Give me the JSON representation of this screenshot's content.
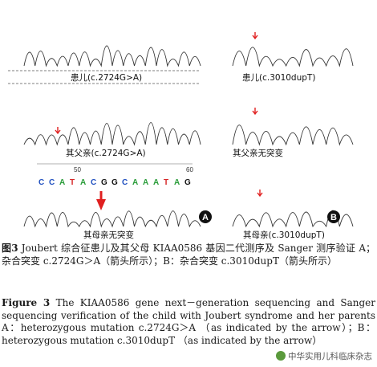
{
  "panels": {
    "left_top_label": "患儿(c.2724G>A)",
    "left_mid_label": "其父亲(c.2724G>A)",
    "left_bottom_label": "其母亲无突变",
    "right_top_label": "患儿(c.3010dupT)",
    "right_mid_label": "其父亲无突变",
    "right_bottom_label": "其母亲(c.3010dupT)",
    "badge_a": "A",
    "badge_b": "B",
    "seq_pos_50": "50",
    "seq_pos_60": "60",
    "sequence": [
      "C",
      "C",
      "A",
      "T",
      "A",
      "C",
      "G",
      "G",
      "C",
      "A",
      "A",
      "A",
      "T",
      "A",
      "G"
    ]
  },
  "caption_cn": {
    "label": "图3",
    "text": "Joubert 综合征患儿及其父母 KIAA0586 基因二代测序及 Sanger 测序验证 A；杂合突变 c.2724G＞A（箭头所示）；B：杂合突变 c.3010dupT（箭头所示）"
  },
  "caption_en": {
    "label": "Figure 3",
    "text": "The KIAA0586 gene next－generation sequencing and Sanger sequencing verification of the child with Joubert syndrome and her parents  A：heterozygous mutation c.2724G＞A （as indicated by the arrow）；B：heterozygous mutation c.3010dupT （as indicated by the arrow）"
  },
  "watermark": "中华实用儿科临床杂志",
  "colors": {
    "G": "#111111",
    "A": "#2a9d3a",
    "T": "#d62728",
    "C": "#1f4fbf",
    "arrow": "#e02020"
  }
}
